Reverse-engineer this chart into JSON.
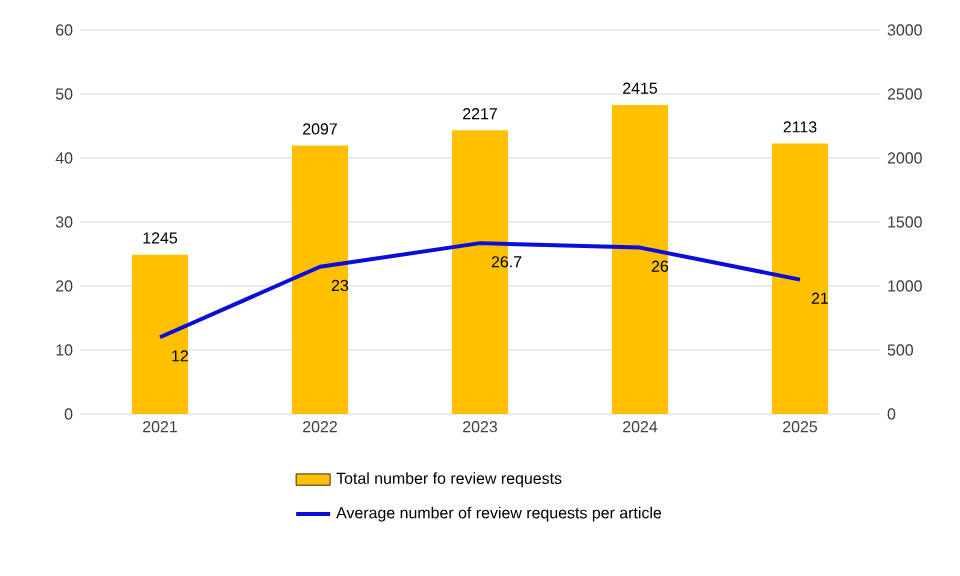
{
  "chart_data": {
    "type": "bar",
    "categories": [
      "2021",
      "2022",
      "2023",
      "2024",
      "2025"
    ],
    "series": [
      {
        "name": "Total number fo review requests",
        "axis": "y2",
        "color": "#ffc000",
        "values": [
          1245,
          2097,
          2217,
          2415,
          2113
        ]
      },
      {
        "name": "Average number of review requests per article",
        "type": "line",
        "color": "#0d0dd9",
        "values": [
          12,
          23,
          26.7,
          26,
          21
        ]
      }
    ],
    "ylim": [
      0,
      60
    ],
    "yticks": [
      0,
      10,
      20,
      30,
      40,
      50,
      60
    ],
    "y2lim": [
      0,
      3000
    ],
    "y2ticks": [
      0,
      500,
      1000,
      1500,
      2000,
      2500,
      3000
    ],
    "grid": "y",
    "legend": "bottom",
    "data_labels": true,
    "marker": "none",
    "line_style": "solid"
  }
}
